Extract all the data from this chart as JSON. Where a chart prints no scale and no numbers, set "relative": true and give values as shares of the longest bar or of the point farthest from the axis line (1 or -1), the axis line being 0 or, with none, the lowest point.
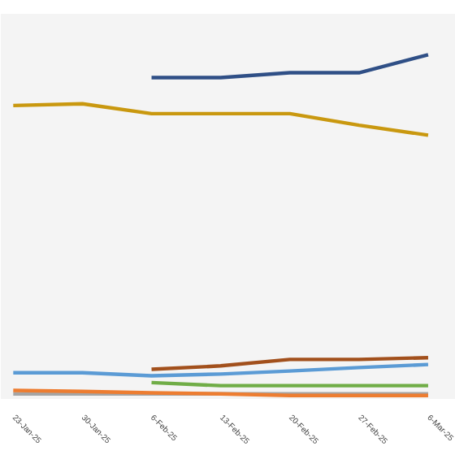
{
  "chart_data": {
    "type": "line",
    "relative": true,
    "categories": [
      "23-Jan-25",
      "30-Jan-25",
      "6-Feb-25",
      "13-Feb-25",
      "20-Feb-25",
      "27-Feb-25",
      "6-Mar-25"
    ],
    "series": [
      {
        "color": "#2f4f86",
        "values": [
          null,
          null,
          0.933,
          0.933,
          0.947,
          0.947,
          1.0
        ]
      },
      {
        "color": "#c9980f",
        "values": [
          0.851,
          0.856,
          0.827,
          0.827,
          0.827,
          0.793,
          0.764
        ]
      },
      {
        "color": "#a2501c",
        "values": [
          null,
          null,
          0.077,
          0.087,
          0.106,
          0.106,
          0.111
        ]
      },
      {
        "color": "#5b9bd5",
        "values": [
          0.067,
          0.067,
          0.058,
          0.063,
          0.072,
          0.082,
          0.091
        ]
      },
      {
        "color": "#70ad47",
        "values": [
          null,
          null,
          0.038,
          0.029,
          0.029,
          0.029,
          0.029
        ]
      },
      {
        "color": "#a5a5a5",
        "values": [
          0.005,
          0.005,
          0.005,
          0.005,
          0.005,
          0.005,
          0.005
        ]
      },
      {
        "color": "#ed7d31",
        "values": [
          0.015,
          0.012,
          0.008,
          0.005,
          0.0,
          0.0,
          0.0
        ]
      }
    ],
    "marker": "none",
    "line_style": "solid"
  }
}
